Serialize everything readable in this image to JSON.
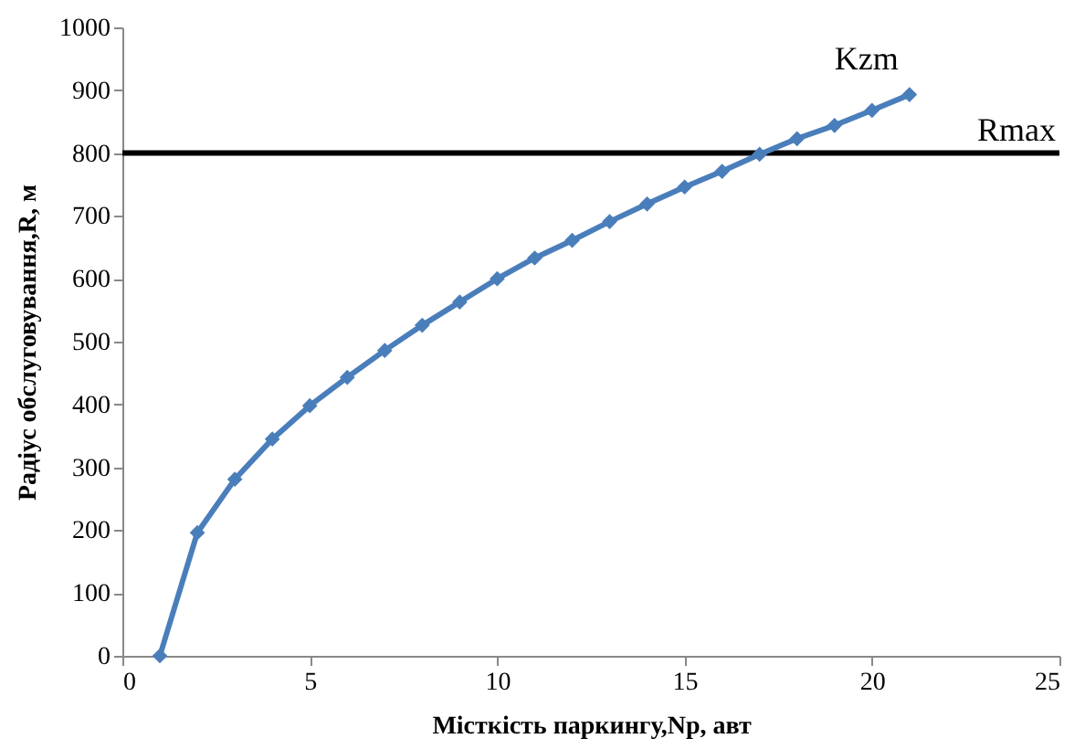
{
  "chart_data": {
    "type": "line",
    "xlabel": "Місткість паркингу,Nр, авт",
    "ylabel": "Радіус обслуговування,R, м",
    "x": [
      1,
      2,
      3,
      4,
      5,
      6,
      7,
      8,
      9,
      10,
      11,
      12,
      13,
      14,
      15,
      16,
      17,
      18,
      19,
      20,
      21
    ],
    "series": [
      {
        "color": "#4a7ebb",
        "values": [
          0,
          196,
          281,
          345,
          398,
          443,
          486,
          526,
          563,
          600,
          633,
          661,
          691,
          719,
          746,
          771,
          798,
          823,
          844,
          868,
          893
        ]
      }
    ],
    "xlim": [
      0,
      25
    ],
    "xticks": [
      0,
      5,
      10,
      15,
      20,
      25
    ],
    "ylim": [
      0,
      1000
    ],
    "yticks": [
      0,
      100,
      200,
      300,
      400,
      500,
      600,
      700,
      800,
      900,
      1000
    ],
    "ref_lines": [
      {
        "axis": "y",
        "value": 800,
        "label": "Rmax",
        "color": "#000000"
      }
    ],
    "annotations": [
      {
        "text": "Kzm",
        "x": 21,
        "y": 893
      }
    ],
    "grid": false,
    "marker": "diamond",
    "line_style": "solid"
  }
}
